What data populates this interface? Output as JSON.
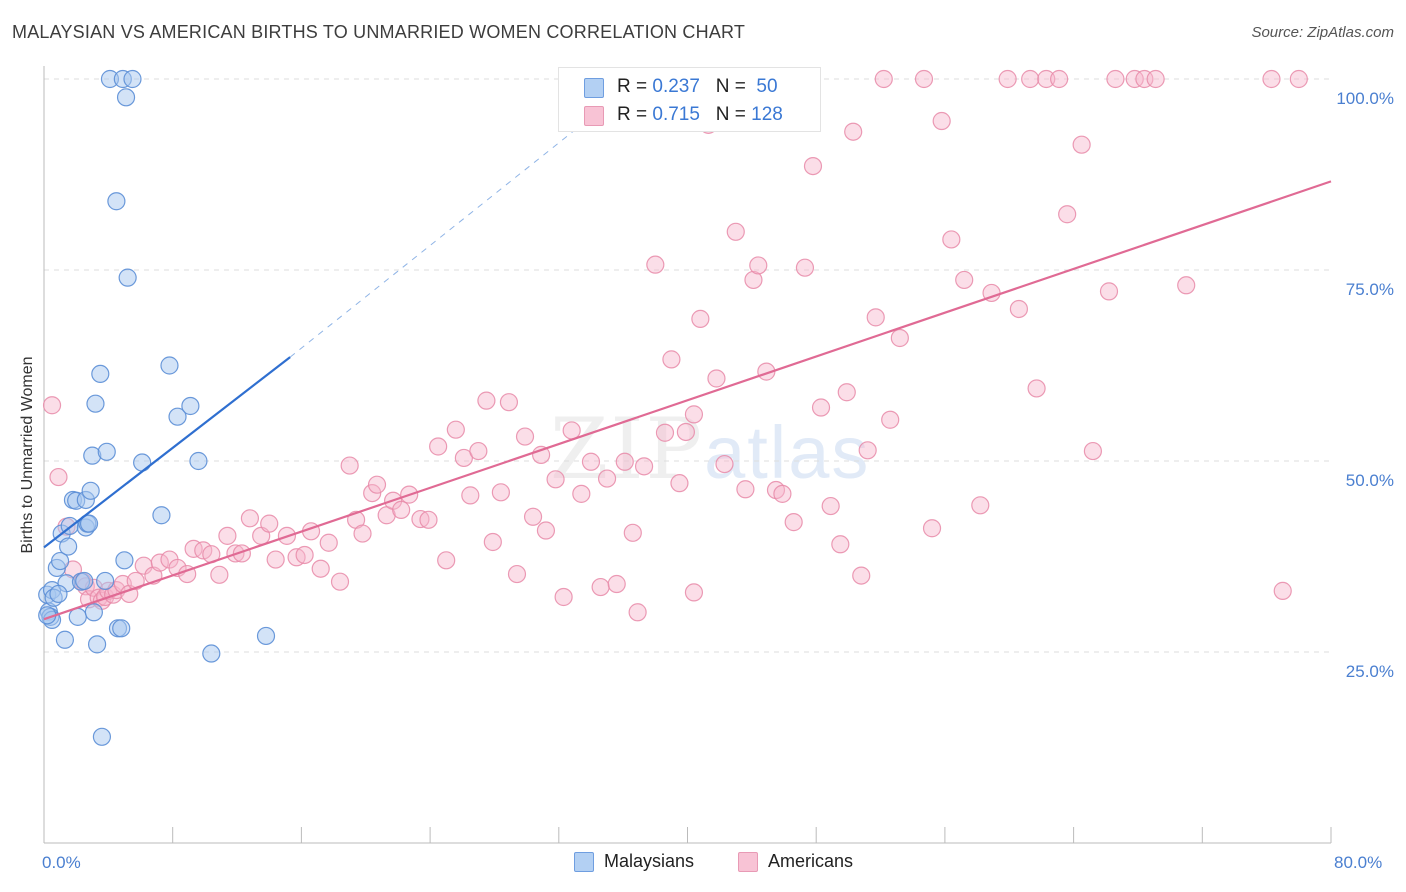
{
  "title": "MALAYSIAN VS AMERICAN BIRTHS TO UNMARRIED WOMEN CORRELATION CHART",
  "source": "Source: ZipAtlas.com",
  "watermark": {
    "zip": "ZIP",
    "atlas": "atlas"
  },
  "legend": {
    "rows": [
      {
        "r_label": "R = ",
        "r_value": "0.237",
        "n_label": "N = ",
        "n_value": "50"
      },
      {
        "r_label": "R = ",
        "r_value": "0.715",
        "n_label": "N = ",
        "n_value": "128"
      }
    ]
  },
  "bottom_legend": {
    "malaysians": "Malaysians",
    "americans": "Americans"
  },
  "chart_data": {
    "type": "scatter",
    "title": "MALAYSIAN VS AMERICAN BIRTHS TO UNMARRIED WOMEN CORRELATION CHART",
    "xlabel": "",
    "ylabel": "Births to Unmarried Women",
    "xlim": [
      0,
      80
    ],
    "ylim": [
      0,
      102
    ],
    "x_ticks": [
      0,
      8,
      16,
      24,
      32,
      40,
      48,
      56,
      64,
      72,
      80
    ],
    "x_tick_labels": {
      "start": "0.0%",
      "end": "80.0%"
    },
    "y_ticks": [
      25,
      50,
      75,
      100
    ],
    "y_tick_labels": [
      "25.0%",
      "50.0%",
      "75.0%",
      "100.0%"
    ],
    "grid": true,
    "colors": {
      "malaysians_fill": "#a8c8f0",
      "malaysians_stroke": "#5b8ed6",
      "malaysians_line": "#2f6fd0",
      "americans_fill": "#f7b6cb",
      "americans_stroke": "#e88aa8",
      "americans_line": "#e06a94"
    },
    "series": [
      {
        "name": "Malaysians",
        "r": 0.237,
        "n": 50,
        "trend": {
          "x": [
            0,
            15.3
          ],
          "y": [
            38.7,
            63.6
          ]
        },
        "trend_extension": {
          "x": [
            15.3,
            34
          ],
          "y": [
            63.6,
            95
          ]
        },
        "points": [
          [
            0.2,
            32.5
          ],
          [
            0.3,
            30.3
          ],
          [
            0.4,
            29.6
          ],
          [
            0.5,
            29.2
          ],
          [
            0.5,
            33.1
          ],
          [
            0.6,
            32.1
          ],
          [
            0.8,
            36.0
          ],
          [
            1.0,
            36.9
          ],
          [
            1.1,
            40.5
          ],
          [
            1.3,
            26.6
          ],
          [
            1.4,
            34.0
          ],
          [
            1.5,
            38.8
          ],
          [
            1.6,
            41.5
          ],
          [
            1.8,
            44.9
          ],
          [
            2.0,
            44.8
          ],
          [
            2.1,
            29.6
          ],
          [
            2.3,
            34.2
          ],
          [
            2.5,
            34.3
          ],
          [
            2.6,
            44.9
          ],
          [
            2.6,
            41.3
          ],
          [
            2.7,
            41.8
          ],
          [
            2.8,
            41.8
          ],
          [
            2.9,
            46.1
          ],
          [
            3.0,
            50.7
          ],
          [
            3.1,
            30.2
          ],
          [
            3.2,
            57.5
          ],
          [
            3.3,
            26.0
          ],
          [
            3.5,
            61.4
          ],
          [
            3.6,
            13.9
          ],
          [
            3.8,
            34.3
          ],
          [
            3.9,
            51.2
          ],
          [
            4.1,
            100.0
          ],
          [
            4.5,
            84.0
          ],
          [
            4.6,
            28.1
          ],
          [
            4.8,
            28.1
          ],
          [
            4.9,
            100.0
          ],
          [
            5.0,
            37.0
          ],
          [
            5.1,
            97.6
          ],
          [
            5.2,
            74.0
          ],
          [
            5.5,
            100.0
          ],
          [
            6.1,
            49.8
          ],
          [
            7.3,
            42.9
          ],
          [
            7.8,
            62.5
          ],
          [
            8.3,
            55.8
          ],
          [
            9.1,
            57.2
          ],
          [
            9.6,
            50.0
          ],
          [
            10.4,
            24.8
          ],
          [
            13.8,
            27.1
          ],
          [
            0.2,
            29.8
          ],
          [
            0.9,
            32.6
          ]
        ]
      },
      {
        "name": "Americans",
        "r": 0.715,
        "n": 128,
        "trend": {
          "x": [
            0,
            80
          ],
          "y": [
            29.3,
            86.6
          ]
        },
        "points": [
          [
            0.5,
            57.3
          ],
          [
            0.9,
            47.9
          ],
          [
            1.4,
            41.4
          ],
          [
            1.8,
            35.8
          ],
          [
            2.4,
            34.2
          ],
          [
            2.6,
            33.6
          ],
          [
            2.8,
            31.9
          ],
          [
            3.1,
            33.4
          ],
          [
            3.4,
            32.1
          ],
          [
            3.6,
            31.7
          ],
          [
            3.8,
            32.2
          ],
          [
            4.0,
            33.0
          ],
          [
            4.3,
            32.5
          ],
          [
            4.5,
            33.1
          ],
          [
            4.9,
            33.9
          ],
          [
            5.3,
            32.6
          ],
          [
            5.7,
            34.3
          ],
          [
            6.2,
            36.3
          ],
          [
            6.8,
            35.0
          ],
          [
            7.2,
            36.7
          ],
          [
            7.8,
            37.1
          ],
          [
            8.3,
            36.0
          ],
          [
            8.9,
            35.2
          ],
          [
            9.3,
            38.5
          ],
          [
            9.9,
            38.3
          ],
          [
            10.4,
            37.8
          ],
          [
            10.9,
            35.1
          ],
          [
            11.4,
            40.2
          ],
          [
            11.9,
            37.9
          ],
          [
            12.3,
            37.9
          ],
          [
            12.8,
            42.5
          ],
          [
            13.5,
            40.2
          ],
          [
            14.0,
            41.8
          ],
          [
            14.4,
            37.1
          ],
          [
            15.1,
            40.2
          ],
          [
            15.7,
            37.4
          ],
          [
            16.2,
            37.7
          ],
          [
            16.6,
            40.8
          ],
          [
            17.2,
            35.9
          ],
          [
            17.7,
            39.3
          ],
          [
            18.4,
            34.2
          ],
          [
            19.0,
            49.4
          ],
          [
            19.4,
            42.3
          ],
          [
            19.8,
            40.5
          ],
          [
            20.4,
            45.8
          ],
          [
            20.7,
            46.9
          ],
          [
            21.3,
            42.9
          ],
          [
            21.7,
            44.8
          ],
          [
            22.2,
            43.6
          ],
          [
            22.7,
            45.6
          ],
          [
            23.4,
            42.4
          ],
          [
            23.9,
            42.3
          ],
          [
            24.5,
            51.9
          ],
          [
            25.0,
            37.0
          ],
          [
            25.6,
            54.1
          ],
          [
            26.1,
            50.4
          ],
          [
            26.5,
            45.5
          ],
          [
            27.0,
            51.3
          ],
          [
            27.5,
            57.9
          ],
          [
            27.9,
            39.4
          ],
          [
            28.4,
            45.9
          ],
          [
            28.9,
            57.7
          ],
          [
            29.4,
            35.2
          ],
          [
            29.9,
            53.2
          ],
          [
            30.4,
            42.7
          ],
          [
            30.9,
            50.8
          ],
          [
            31.2,
            40.9
          ],
          [
            31.8,
            47.6
          ],
          [
            32.3,
            32.2
          ],
          [
            32.8,
            54.0
          ],
          [
            33.4,
            45.7
          ],
          [
            34.0,
            49.9
          ],
          [
            34.6,
            33.5
          ],
          [
            35.0,
            47.7
          ],
          [
            35.6,
            33.9
          ],
          [
            36.1,
            49.9
          ],
          [
            36.6,
            40.6
          ],
          [
            36.9,
            30.2
          ],
          [
            37.3,
            49.3
          ],
          [
            38.0,
            75.7
          ],
          [
            38.6,
            53.7
          ],
          [
            39.0,
            63.3
          ],
          [
            39.5,
            47.1
          ],
          [
            39.9,
            53.8
          ],
          [
            40.4,
            56.1
          ],
          [
            40.8,
            68.6
          ],
          [
            41.3,
            94.0
          ],
          [
            41.8,
            60.8
          ],
          [
            42.3,
            49.6
          ],
          [
            43.0,
            80.0
          ],
          [
            43.6,
            46.3
          ],
          [
            44.1,
            73.7
          ],
          [
            44.4,
            75.6
          ],
          [
            44.9,
            61.7
          ],
          [
            45.5,
            46.2
          ],
          [
            45.9,
            45.7
          ],
          [
            46.6,
            42.0
          ],
          [
            47.3,
            75.3
          ],
          [
            47.8,
            88.6
          ],
          [
            48.3,
            57.0
          ],
          [
            48.9,
            44.1
          ],
          [
            49.5,
            39.1
          ],
          [
            49.9,
            59.0
          ],
          [
            50.3,
            93.1
          ],
          [
            50.8,
            35.0
          ],
          [
            51.2,
            51.4
          ],
          [
            51.7,
            68.8
          ],
          [
            52.2,
            100.0
          ],
          [
            52.6,
            55.4
          ],
          [
            53.2,
            66.1
          ],
          [
            54.7,
            100.0
          ],
          [
            55.2,
            41.2
          ],
          [
            55.8,
            94.5
          ],
          [
            56.4,
            79.0
          ],
          [
            57.2,
            73.7
          ],
          [
            58.2,
            44.2
          ],
          [
            58.9,
            72.0
          ],
          [
            59.9,
            100.0
          ],
          [
            60.6,
            69.9
          ],
          [
            61.3,
            100.0
          ],
          [
            61.7,
            59.5
          ],
          [
            62.3,
            100.0
          ],
          [
            63.1,
            100.0
          ],
          [
            63.6,
            82.3
          ],
          [
            64.5,
            91.4
          ],
          [
            65.2,
            51.3
          ],
          [
            66.2,
            72.2
          ],
          [
            66.6,
            100.0
          ],
          [
            67.8,
            100.0
          ],
          [
            68.4,
            100.0
          ],
          [
            69.1,
            100.0
          ],
          [
            71.0,
            73.0
          ],
          [
            76.3,
            100.0
          ],
          [
            77.0,
            33.0
          ],
          [
            78.0,
            100.0
          ],
          [
            40.4,
            32.8
          ]
        ]
      }
    ]
  }
}
